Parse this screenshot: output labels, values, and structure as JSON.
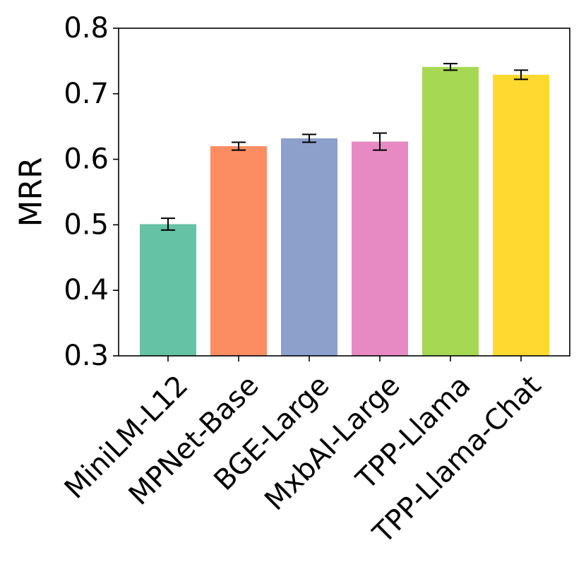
{
  "chart_data": {
    "type": "bar",
    "title": "",
    "xlabel": "",
    "ylabel": "MRR",
    "ylim": [
      0.3,
      0.8
    ],
    "yticks": [
      "0.3",
      "0.4",
      "0.5",
      "0.6",
      "0.7",
      "0.8"
    ],
    "grid": false,
    "legend": "none",
    "categories": [
      "MiniLM-L12",
      "MPNet-Base",
      "BGE-Large",
      "MxbAI-Large",
      "TPP-Llama",
      "TPP-Llama-Chat"
    ],
    "values": [
      0.501,
      0.62,
      0.632,
      0.627,
      0.741,
      0.729
    ],
    "errors": [
      0.009,
      0.006,
      0.006,
      0.013,
      0.005,
      0.007
    ],
    "colors": [
      "#66c2a5",
      "#fc8d62",
      "#8da0cb",
      "#e78ac3",
      "#a6d854",
      "#ffd92f"
    ]
  }
}
